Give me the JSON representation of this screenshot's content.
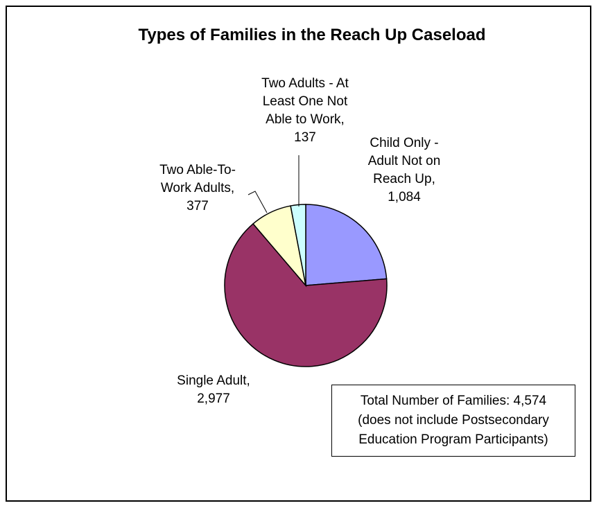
{
  "chart_data": {
    "type": "pie",
    "title": "Types of Families in the Reach Up Caseload",
    "slices": [
      {
        "name": "Child Only - Adult Not on Reach Up",
        "value": 1084,
        "value_label": "1,084",
        "color": "#9999ff",
        "label_lines": [
          "Child Only -",
          "Adult Not on",
          "Reach Up,",
          "1,084"
        ]
      },
      {
        "name": "Single Adult",
        "value": 2977,
        "value_label": "2,977",
        "color": "#993366",
        "label_lines": [
          "Single Adult,",
          "2,977"
        ]
      },
      {
        "name": "Two Able-To-Work Adults",
        "value": 377,
        "value_label": "377",
        "color": "#ffffcc",
        "label_lines": [
          "Two Able-To-",
          "Work Adults,",
          "377"
        ]
      },
      {
        "name": "Two Adults - At Least One Not Able to Work",
        "value": 137,
        "value_label": "137",
        "color": "#ccffff",
        "label_lines": [
          "Two Adults - At",
          "Least One Not",
          "Able to Work,",
          "137"
        ]
      }
    ],
    "note": [
      "Total Number of Families: 4,574",
      "(does not include Postsecondary",
      "Education Program Participants)"
    ]
  }
}
